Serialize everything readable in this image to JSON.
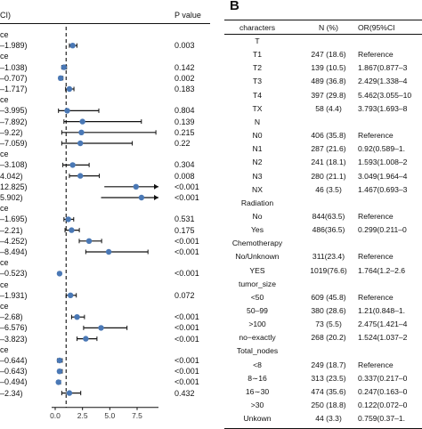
{
  "left_panel": {
    "header": {
      "ci_fragment": "CI)",
      "pvalue": "P value"
    },
    "rows": [
      {
        "label": "ce",
        "ci": "",
        "p": "",
        "est": null,
        "lo": null,
        "hi": null,
        "arrow": false
      },
      {
        "label": "–1.989)",
        "ci": "",
        "p": "0.003",
        "est": 1.6,
        "lo": 1.3,
        "hi": 1.989,
        "arrow": false
      },
      {
        "label": "ce",
        "ci": "",
        "p": "",
        "est": null,
        "lo": null,
        "hi": null,
        "arrow": false
      },
      {
        "label": "–1.038)",
        "ci": "",
        "p": "0.142",
        "est": 0.8,
        "lo": 0.6,
        "hi": 1.038,
        "arrow": false
      },
      {
        "label": "–0.707)",
        "ci": "",
        "p": "0.002",
        "est": 0.5,
        "lo": 0.35,
        "hi": 0.707,
        "arrow": false
      },
      {
        "label": "–1.717)",
        "ci": "",
        "p": "0.183",
        "est": 1.3,
        "lo": 0.95,
        "hi": 1.717,
        "arrow": false
      },
      {
        "label": "ce",
        "ci": "",
        "p": "",
        "est": null,
        "lo": null,
        "hi": null,
        "arrow": false
      },
      {
        "label": "–3.995)",
        "ci": "",
        "p": "0.804",
        "est": 1.1,
        "lo": 0.3,
        "hi": 3.995,
        "arrow": false
      },
      {
        "label": "–7.892)",
        "ci": "",
        "p": "0.139",
        "est": 2.5,
        "lo": 0.8,
        "hi": 7.892,
        "arrow": false
      },
      {
        "label": "–9.22)",
        "ci": "",
        "p": "0.215",
        "est": 2.4,
        "lo": 0.6,
        "hi": 9.22,
        "arrow": false
      },
      {
        "label": "–7.059)",
        "ci": "",
        "p": "0.22",
        "est": 2.3,
        "lo": 0.6,
        "hi": 7.059,
        "arrow": false
      },
      {
        "label": "ce",
        "ci": "",
        "p": "",
        "est": null,
        "lo": null,
        "hi": null,
        "arrow": false
      },
      {
        "label": "–3.108)",
        "ci": "",
        "p": "0.304",
        "est": 1.6,
        "lo": 0.7,
        "hi": 3.108,
        "arrow": false
      },
      {
        "label": "4.042)",
        "ci": "",
        "p": "0.008",
        "est": 2.3,
        "lo": 1.3,
        "hi": 4.042,
        "arrow": false
      },
      {
        "label": "12.825)",
        "ci": "",
        "p": "<0.001",
        "est": 7.4,
        "lo": 4.5,
        "hi": 12.825,
        "arrow": true
      },
      {
        "label": "5.902)",
        "ci": "",
        "p": "<0.001",
        "est": 7.9,
        "lo": 4.2,
        "hi": 15.902,
        "arrow": true
      },
      {
        "label": "ce",
        "ci": "",
        "p": "",
        "est": null,
        "lo": null,
        "hi": null,
        "arrow": false
      },
      {
        "label": "–1.695)",
        "ci": "",
        "p": "0.531",
        "est": 1.2,
        "lo": 0.8,
        "hi": 1.695,
        "arrow": false
      },
      {
        "label": "–2.21)",
        "ci": "",
        "p": "0.175",
        "est": 1.5,
        "lo": 0.9,
        "hi": 2.21,
        "arrow": false
      },
      {
        "label": "–4.252)",
        "ci": "",
        "p": "<0.001",
        "est": 3.1,
        "lo": 2.2,
        "hi": 4.252,
        "arrow": false
      },
      {
        "label": "–8.494)",
        "ci": "",
        "p": "<0.001",
        "est": 4.9,
        "lo": 2.8,
        "hi": 8.494,
        "arrow": false
      },
      {
        "label": "ce",
        "ci": "",
        "p": "",
        "est": null,
        "lo": null,
        "hi": null,
        "arrow": false
      },
      {
        "label": "–0.523)",
        "ci": "",
        "p": "<0.001",
        "est": 0.4,
        "lo": 0.3,
        "hi": 0.523,
        "arrow": false
      },
      {
        "label": "ce",
        "ci": "",
        "p": "",
        "est": null,
        "lo": null,
        "hi": null,
        "arrow": false
      },
      {
        "label": "–1.931)",
        "ci": "",
        "p": "0.072",
        "est": 1.4,
        "lo": 1.0,
        "hi": 1.931,
        "arrow": false
      },
      {
        "label": "ce",
        "ci": "",
        "p": "",
        "est": null,
        "lo": null,
        "hi": null,
        "arrow": false
      },
      {
        "label": "–2.68)",
        "ci": "",
        "p": "<0.001",
        "est": 2.0,
        "lo": 1.5,
        "hi": 2.68,
        "arrow": false
      },
      {
        "label": "–6.576)",
        "ci": "",
        "p": "<0.001",
        "est": 4.2,
        "lo": 2.6,
        "hi": 6.576,
        "arrow": false
      },
      {
        "label": "–3.823)",
        "ci": "",
        "p": "<0.001",
        "est": 2.8,
        "lo": 2.0,
        "hi": 3.823,
        "arrow": false
      },
      {
        "label": "ce",
        "ci": "",
        "p": "",
        "est": null,
        "lo": null,
        "hi": null,
        "arrow": false
      },
      {
        "label": "–0.644)",
        "ci": "",
        "p": "<0.001",
        "est": 0.4,
        "lo": 0.2,
        "hi": 0.644,
        "arrow": false
      },
      {
        "label": "–0.643)",
        "ci": "",
        "p": "<0.001",
        "est": 0.4,
        "lo": 0.25,
        "hi": 0.643,
        "arrow": false
      },
      {
        "label": "–0.494)",
        "ci": "",
        "p": "<0.001",
        "est": 0.3,
        "lo": 0.2,
        "hi": 0.494,
        "arrow": false
      },
      {
        "label": "–2.34)",
        "ci": "",
        "p": "0.432",
        "est": 1.3,
        "lo": 0.6,
        "hi": 2.34,
        "arrow": false
      }
    ],
    "axis": {
      "ticks": [
        "0.0",
        "2.5",
        "5.0",
        "7.5"
      ],
      "tick_values": [
        0,
        2.5,
        5,
        7.5
      ],
      "ref_line": 1,
      "xlim": [
        -1,
        9
      ]
    },
    "point_color": "#4a78b5"
  },
  "right_panel": {
    "letter": "B",
    "header": {
      "characters": "characters",
      "n": "N (%)",
      "or": "OR(95%CI"
    },
    "rows": [
      {
        "c": "T",
        "n": "",
        "or": "",
        "group": true
      },
      {
        "c": "T1",
        "n": "247 (18.6)",
        "or": "Reference",
        "group": false
      },
      {
        "c": "T2",
        "n": "139 (10.5)",
        "or": "1.867(0.877–3",
        "group": false
      },
      {
        "c": "T3",
        "n": "489 (36.8)",
        "or": "2.429(1.338–4",
        "group": false
      },
      {
        "c": "T4",
        "n": "397 (29.8)",
        "or": "5.462(3.055–10",
        "group": false
      },
      {
        "c": "TX",
        "n": "58 (4.4)",
        "or": "3.793(1.693–8",
        "group": false
      },
      {
        "c": "N",
        "n": "",
        "or": "",
        "group": true
      },
      {
        "c": "N0",
        "n": "406 (35.8)",
        "or": "Reference",
        "group": false
      },
      {
        "c": "N1",
        "n": "287 (21.6)",
        "or": "0.92(0.589–1.",
        "group": false
      },
      {
        "c": "N2",
        "n": "241 (18.1)",
        "or": "1.593(1.008–2",
        "group": false
      },
      {
        "c": "N3",
        "n": "280 (21.1)",
        "or": "3.049(1.964–4",
        "group": false
      },
      {
        "c": "NX",
        "n": "46 (3.5)",
        "or": "1.467(0.693–3",
        "group": false
      },
      {
        "c": "Radiation",
        "n": "",
        "or": "",
        "group": true
      },
      {
        "c": "No",
        "n": "844(63.5)",
        "or": "Reference",
        "group": false
      },
      {
        "c": "Yes",
        "n": "486(36.5)",
        "or": "0.299(0.211–0",
        "group": false
      },
      {
        "c": "Chemotherapy",
        "n": "",
        "or": "",
        "group": true
      },
      {
        "c": "No/Unknown",
        "n": "311(23.4)",
        "or": "Reference",
        "group": false
      },
      {
        "c": "YES",
        "n": "1019(76.6)",
        "or": "1.764(1.2–2.6",
        "group": false
      },
      {
        "c": "tumor_size",
        "n": "",
        "or": "",
        "group": true
      },
      {
        "c": "<50",
        "n": "609 (45.8)",
        "or": "Reference",
        "group": false
      },
      {
        "c": "50–99",
        "n": "380 (28.6)",
        "or": "1.21(0.848–1.",
        "group": false
      },
      {
        "c": ">100",
        "n": "73 (5.5)",
        "or": "2.475(1.421–4",
        "group": false
      },
      {
        "c": "no−exactly",
        "n": "268 (20.2)",
        "or": "1.524(1.037–2",
        "group": false
      },
      {
        "c": "Total_nodes",
        "n": "",
        "or": "",
        "group": true
      },
      {
        "c": "<8",
        "n": "249 (18.7)",
        "or": "Reference",
        "group": false
      },
      {
        "c": "8∼16",
        "n": "313 (23.5)",
        "or": "0.337(0.217–0",
        "group": false
      },
      {
        "c": "16∼30",
        "n": "474 (35.6)",
        "or": "0.247(0.163–0",
        "group": false
      },
      {
        "c": ">30",
        "n": "250 (18.8)",
        "or": "0.122(0.072–0",
        "group": false
      },
      {
        "c": "Unkown",
        "n": "44 (3.3)",
        "or": "0.759(0.37–1.",
        "group": false
      }
    ]
  }
}
